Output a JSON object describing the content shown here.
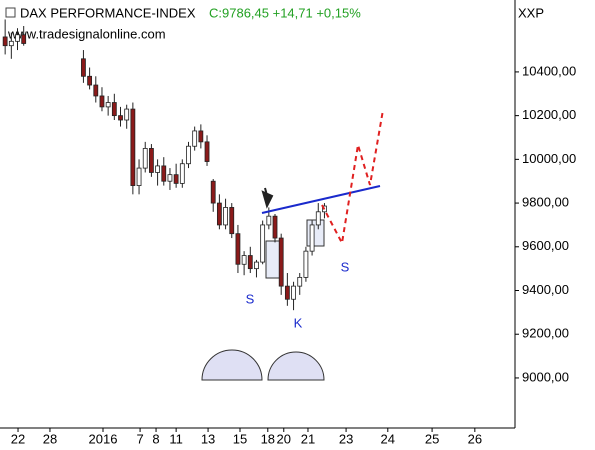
{
  "chart_data": {
    "type": "candlestick",
    "title": "DAX PERFORMANCE-INDEX",
    "subtitle": "C:9786,45 +14,71 +0,15%",
    "subtitle_color": "#22a022",
    "source": "www.tradesignalonline.com",
    "y_axis_label": "XXP",
    "annotations": [
      "S",
      "K",
      "S"
    ],
    "up_color": "#ffffff",
    "down_color": "#8b1a1a",
    "x": [
      1.0,
      2.2,
      3.4,
      4.6,
      16.2,
      17.4,
      18.6,
      19.8,
      21.0,
      22.2,
      23.4,
      24.6,
      25.8,
      27.0,
      28.2,
      29.4,
      30.6,
      31.8,
      33.0,
      34.2,
      35.4,
      36.6,
      37.8,
      39.0,
      40.2,
      41.4,
      42.6,
      43.8,
      45.0,
      46.2,
      47.4,
      48.6,
      49.8,
      51.0,
      52.2,
      53.4,
      54.6,
      55.8,
      57.0,
      58.2,
      59.4,
      60.6,
      61.8,
      63.0
    ],
    "open": [
      10560,
      10520,
      10540,
      10570,
      10460,
      10380,
      10340,
      10290,
      10240,
      10260,
      10200,
      10180,
      10230,
      9880,
      9960,
      10050,
      9940,
      9970,
      9900,
      9930,
      9890,
      9980,
      10060,
      10130,
      10080,
      9900,
      9800,
      9700,
      9780,
      9660,
      9520,
      9560,
      9500,
      9530,
      9700,
      9740,
      9640,
      9420,
      9360,
      9420,
      9460,
      9580,
      9700,
      9760
    ],
    "high": [
      10640,
      10580,
      10600,
      10610,
      10500,
      10420,
      10380,
      10330,
      10290,
      10300,
      10240,
      10250,
      10260,
      10000,
      10080,
      10070,
      10000,
      10010,
      9960,
      9980,
      10000,
      10080,
      10150,
      10160,
      10110,
      9910,
      9840,
      9820,
      9800,
      9700,
      9580,
      9600,
      9540,
      9720,
      9780,
      9750,
      9660,
      9480,
      9440,
      9480,
      9600,
      9720,
      9800,
      9800
    ],
    "low": [
      10480,
      10460,
      10500,
      10520,
      10350,
      10320,
      10260,
      10220,
      10200,
      10180,
      10150,
      10140,
      9840,
      9840,
      9940,
      9920,
      9880,
      9880,
      9860,
      9870,
      9870,
      9960,
      10040,
      10050,
      9970,
      9760,
      9680,
      9680,
      9640,
      9480,
      9470,
      9480,
      9460,
      9520,
      9680,
      9620,
      9380,
      9330,
      9310,
      9380,
      9440,
      9560,
      9680,
      9730
    ],
    "close": [
      10520,
      10540,
      10570,
      10530,
      10380,
      10340,
      10290,
      10240,
      10260,
      10200,
      10180,
      10230,
      9880,
      9960,
      10050,
      9940,
      9970,
      9900,
      9930,
      9890,
      9980,
      10060,
      10130,
      10080,
      9990,
      9800,
      9700,
      9780,
      9660,
      9520,
      9560,
      9500,
      9530,
      9700,
      9740,
      9640,
      9420,
      9360,
      9420,
      9460,
      9580,
      9700,
      9760,
      9786.45
    ],
    "xlim": [
      0,
      100
    ],
    "xticks": [
      {
        "value": 3.5,
        "label": "22"
      },
      {
        "value": 9.7,
        "label": "28"
      },
      {
        "value": 20.0,
        "label": "2016"
      },
      {
        "value": 27.2,
        "label": "7"
      },
      {
        "value": 30.3,
        "label": "8"
      },
      {
        "value": 34.2,
        "label": "11"
      },
      {
        "value": 40.4,
        "label": "13"
      },
      {
        "value": 46.6,
        "label": "15"
      },
      {
        "value": 52.0,
        "label": "18"
      },
      {
        "value": 55.1,
        "label": "20"
      },
      {
        "value": 59.8,
        "label": "21"
      },
      {
        "value": 67.2,
        "label": "23"
      },
      {
        "value": 75.3,
        "label": "24"
      },
      {
        "value": 83.9,
        "label": "25"
      },
      {
        "value": 92.2,
        "label": "26"
      }
    ],
    "ylim": [
      8771,
      10729
    ],
    "yticks": [
      {
        "value": 9000,
        "label": "9000,00"
      },
      {
        "value": 9200,
        "label": "9200,00"
      },
      {
        "value": 9400,
        "label": "9400,00"
      },
      {
        "value": 9600,
        "label": "9600,00"
      },
      {
        "value": 9800,
        "label": "9800,00"
      },
      {
        "value": 10000,
        "label": "10000,00"
      },
      {
        "value": 10200,
        "label": "10200,00"
      },
      {
        "value": 10400,
        "label": "10400,00"
      }
    ],
    "grid": false
  }
}
